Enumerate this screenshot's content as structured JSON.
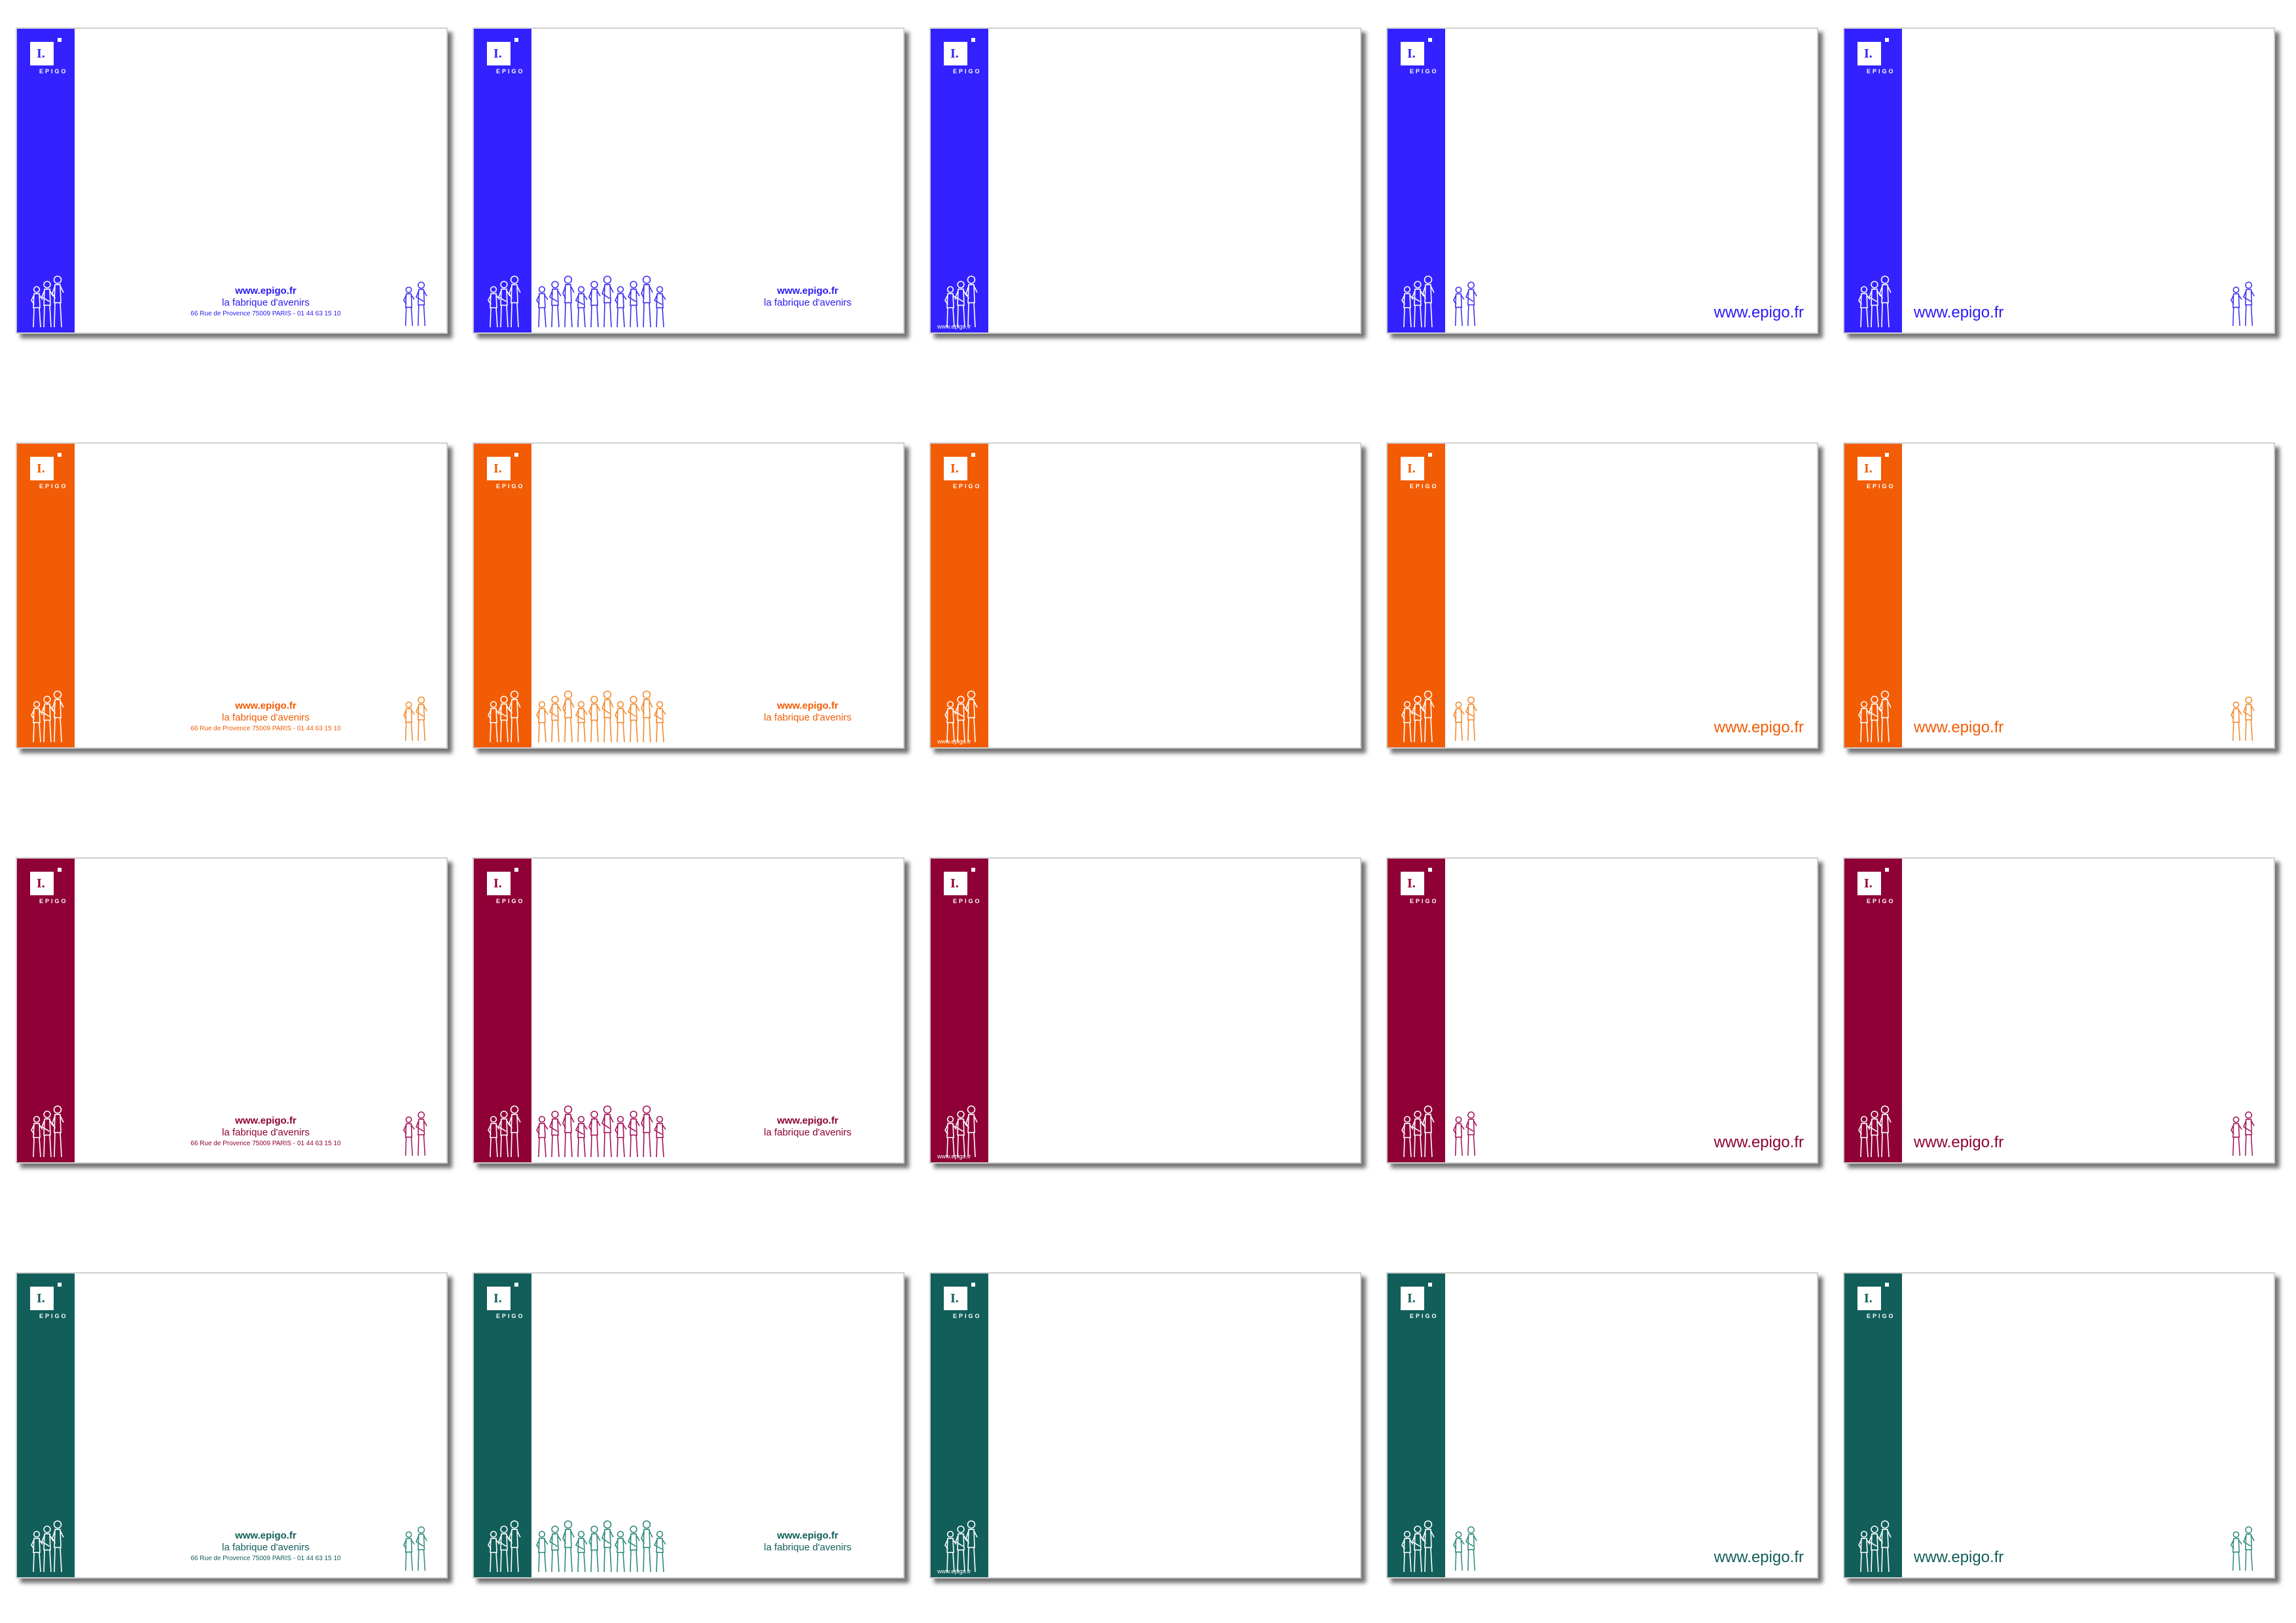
{
  "document": {
    "brand": "EPIGO",
    "website": "www.epigo.fr",
    "tagline": "la fabrique d'avenirs",
    "address": "66 Rue de Provence 75009 PARIS - 01 44 63 15 10"
  },
  "palettes": [
    {
      "name": "blue",
      "band_color": "#3322ff",
      "text_color": "#2b19f2",
      "line_color": "#3d2ef0"
    },
    {
      "name": "orange",
      "band_color": "#f25c05",
      "text_color": "#f25c05",
      "line_color": "#f28a2e"
    },
    {
      "name": "burgundy",
      "band_color": "#8e0036",
      "text_color": "#8e0036",
      "line_color": "#a3125a"
    },
    {
      "name": "teal",
      "band_color": "#115e5a",
      "text_color": "#115e5a",
      "line_color": "#2d8a7a"
    }
  ],
  "layouts": [
    {
      "id": "address-layout",
      "shows": [
        "website",
        "tagline",
        "address"
      ]
    },
    {
      "id": "group-layout",
      "shows": [
        "website",
        "tagline"
      ]
    },
    {
      "id": "band-url-layout",
      "shows": [
        "website"
      ]
    },
    {
      "id": "right-url-layout",
      "shows": [
        "website"
      ]
    },
    {
      "id": "left-url-layout",
      "shows": [
        "website"
      ]
    }
  ]
}
